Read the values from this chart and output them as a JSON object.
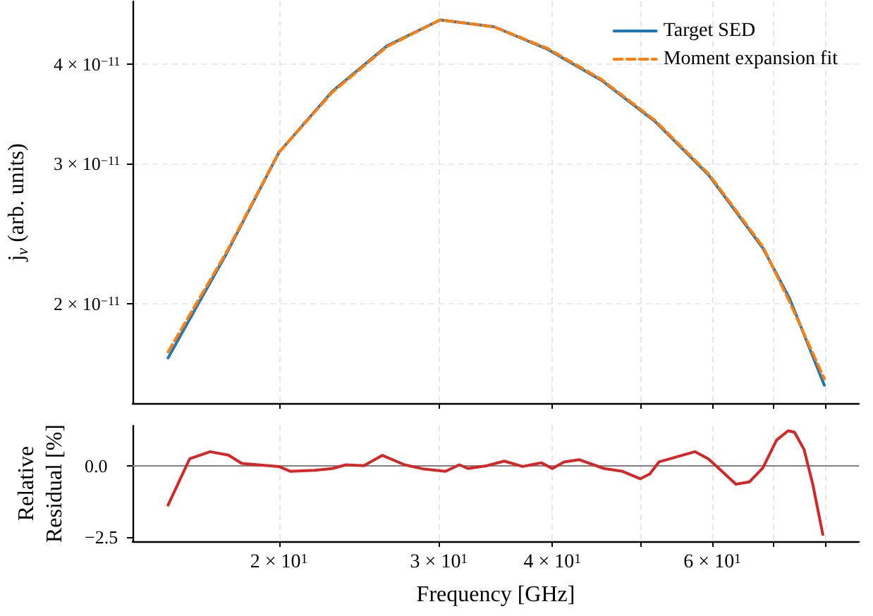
{
  "chart_data": [
    {
      "type": "line",
      "ylabel": "j$_{ν}$ (arb. units)",
      "log": "xy",
      "grid": true,
      "legend": "top right",
      "tick_labels": "y",
      "line_style": "solid",
      "xlim": [
        13.8,
        87
      ],
      "xticks": [
        {
          "value": 20,
          "label": null
        },
        {
          "value": 30,
          "label": null
        },
        {
          "value": 40,
          "label": null
        },
        {
          "value": 50,
          "label": null
        },
        {
          "value": 60,
          "label": null
        },
        {
          "value": 70,
          "label": null
        },
        {
          "value": 80,
          "label": null
        }
      ],
      "ylim": [
        1.5e-11,
        4.8e-11
      ],
      "yticks": [
        {
          "value": 2e-11,
          "label": "2 × 10$^{−11}$"
        },
        {
          "value": 3e-11,
          "label": "3 × 10$^{−11}$"
        },
        {
          "value": 4e-11,
          "label": "4 × 10$^{−11}$"
        }
      ],
      "series": [
        {
          "name": "Target SED",
          "color": "#1f77b4",
          "x": [
            15.1,
            16.3,
            17.5,
            20,
            22.9,
            26.3,
            30.1,
            34.5,
            39.5,
            45.3,
            51.9,
            59.5,
            68.2,
            73.0,
            79.7
          ],
          "values": [
            1.71e-11,
            2e-11,
            2.31e-11,
            3.1e-11,
            3.7e-11,
            4.22e-11,
            4.55e-11,
            4.46e-11,
            4.18e-11,
            3.82e-11,
            3.39e-11,
            2.9e-11,
            2.35e-11,
            2.03e-11,
            1.58e-11
          ]
        },
        {
          "name": "Moment expansion fit",
          "color": "#ff7f0e",
          "line_style": "dashed",
          "x": [
            15.1,
            16.3,
            17.5,
            20,
            22.9,
            26.3,
            30.1,
            34.5,
            39.5,
            45.3,
            51.9,
            59.5,
            68.2,
            73.0,
            79.7
          ],
          "values": [
            1.74e-11,
            2.02e-11,
            2.32e-11,
            3.1e-11,
            3.69e-11,
            4.21e-11,
            4.55e-11,
            4.46e-11,
            4.19e-11,
            3.83e-11,
            3.4e-11,
            2.91e-11,
            2.36e-11,
            2.01e-11,
            1.61e-11
          ]
        }
      ]
    },
    {
      "type": "line",
      "xlabel": "Frequency [GHz]",
      "ylabel": "Relative\nResidual [%]",
      "log": "x",
      "grid": "x",
      "line_style": "solid",
      "xlim": [
        13.8,
        87
      ],
      "xticks": [
        {
          "value": 20,
          "label": "2 × 10$^{1}$"
        },
        {
          "value": 30,
          "label": "3 × 10$^{1}$"
        },
        {
          "value": 40,
          "label": "4 × 10$^{1}$"
        },
        {
          "value": 50,
          "label": null
        },
        {
          "value": 60,
          "label": "6 × 10$^{1}$"
        },
        {
          "value": 70,
          "label": null
        },
        {
          "value": 80,
          "label": null
        }
      ],
      "ylim": [
        -2.65,
        1.4
      ],
      "yticks": [
        {
          "value": -2.5,
          "label": "−2.5"
        },
        {
          "value": 0,
          "label": "0.0"
        }
      ],
      "ref_lines": [
        {
          "axis": "y",
          "value": 0,
          "color": "#808080"
        }
      ],
      "series": [
        {
          "color": "#d62728",
          "x": [
            15.1,
            15.95,
            16.8,
            17.6,
            18.2,
            20.0,
            20.6,
            21.9,
            22.9,
            23.7,
            24.8,
            26.0,
            27.5,
            28.8,
            30.5,
            31.6,
            32.3,
            33.9,
            35.4,
            37.1,
            38.9,
            40.0,
            41.2,
            42.8,
            45.6,
            47.8,
            50.0,
            51.2,
            52.4,
            57.4,
            59.4,
            63.7,
            65.9,
            68.2,
            70.6,
            72.7,
            73.9,
            75.7,
            77.4,
            79.4
          ],
          "values": [
            -1.38,
            0.24,
            0.49,
            0.37,
            0.08,
            -0.03,
            -0.2,
            -0.16,
            -0.1,
            0.03,
            0,
            0.36,
            0.03,
            -0.11,
            -0.2,
            0.03,
            -0.1,
            0,
            0.16,
            -0.03,
            0.1,
            -0.1,
            0.13,
            0.21,
            -0.1,
            -0.2,
            -0.46,
            -0.29,
            0.13,
            0.49,
            0.24,
            -0.65,
            -0.57,
            -0.08,
            0.89,
            1.22,
            1.17,
            0.57,
            -0.65,
            -2.41
          ]
        }
      ]
    }
  ]
}
